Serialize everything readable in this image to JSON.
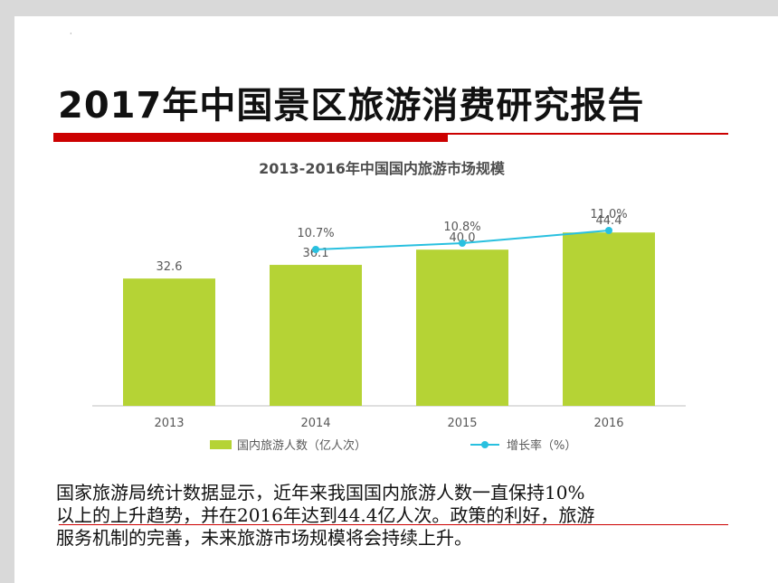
{
  "slide": {
    "dot_mark": "·",
    "title": "2017年中国景区旅游消费研究报告",
    "paragraph_lines": [
      "国家旅游局统计数据显示，近年来我国国内旅游人数一直保持10%",
      "以上的上升趋势，并在2016年达到44.4亿人次。政策的利好，旅游",
      "服务机制的完善，未来旅游市场规模将会持续上升。"
    ],
    "colors": {
      "accent_red": "#cc0000",
      "frame_gray": "#d9d9d9"
    }
  },
  "chart_data": {
    "type": "bar",
    "title": "2013-2016年中国国内旅游市场规模",
    "categories": [
      "2013",
      "2014",
      "2015",
      "2016"
    ],
    "series": [
      {
        "name": "国内旅游人数（亿人次）",
        "type": "bar",
        "values": [
          32.6,
          36.1,
          40.0,
          44.4
        ],
        "labels": [
          "32.6",
          "36.1",
          "40.0",
          "44.4"
        ],
        "color": "#b5d335"
      },
      {
        "name": "增长率（%）",
        "type": "line",
        "values": [
          null,
          10.7,
          10.8,
          11.0
        ],
        "labels": [
          null,
          "10.7%",
          "10.8%",
          "11.0%"
        ],
        "color": "#29c0df"
      }
    ],
    "legend_position": "bottom",
    "grid": false
  }
}
